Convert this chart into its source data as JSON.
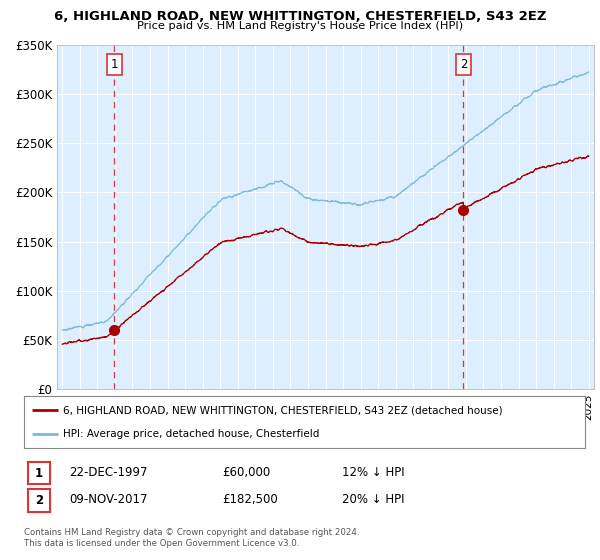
{
  "title": "6, HIGHLAND ROAD, NEW WHITTINGTON, CHESTERFIELD, S43 2EZ",
  "subtitle": "Price paid vs. HM Land Registry's House Price Index (HPI)",
  "legend_line1": "6, HIGHLAND ROAD, NEW WHITTINGTON, CHESTERFIELD, S43 2EZ (detached house)",
  "legend_line2": "HPI: Average price, detached house, Chesterfield",
  "sale1_date": "22-DEC-1997",
  "sale1_price": "£60,000",
  "sale1_hpi": "12% ↓ HPI",
  "sale2_date": "09-NOV-2017",
  "sale2_price": "£182,500",
  "sale2_hpi": "20% ↓ HPI",
  "footer": "Contains HM Land Registry data © Crown copyright and database right 2024.\nThis data is licensed under the Open Government Licence v3.0.",
  "hpi_color": "#7ab8d9",
  "sale_color": "#aa0000",
  "dashed_color": "#dd3333",
  "sale1_year": 1997.97,
  "sale2_year": 2017.86,
  "sale1_value": 60000,
  "sale2_value": 182500,
  "ylim": [
    0,
    350000
  ],
  "yticks": [
    0,
    50000,
    100000,
    150000,
    200000,
    250000,
    300000,
    350000
  ],
  "ytick_labels": [
    "£0",
    "£50K",
    "£100K",
    "£150K",
    "£200K",
    "£250K",
    "£300K",
    "£350K"
  ],
  "background_color": "#ddeeff"
}
